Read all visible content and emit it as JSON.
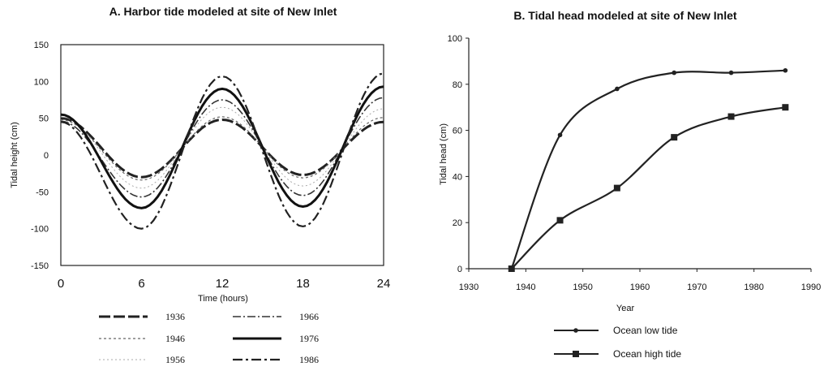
{
  "chart_data": [
    {
      "type": "line",
      "title": "A. Harbor tide modeled at site of New Inlet",
      "xlabel": "Time (hours)",
      "ylabel": "Tidal height (cm)",
      "xlim": [
        0,
        24
      ],
      "ylim": [
        -150,
        150
      ],
      "xticks": [
        "0",
        "6",
        "12",
        "18",
        "24"
      ],
      "yticks": [
        "150",
        "100",
        "50",
        "0",
        "-50",
        "-100",
        "-150"
      ],
      "grid": false,
      "legend_position": "bottom",
      "x": [
        0,
        6,
        12,
        18,
        24
      ],
      "series": [
        {
          "name": "1936",
          "values": [
            50,
            -30,
            48,
            -27,
            45
          ]
        },
        {
          "name": "1946",
          "values": [
            48,
            -34,
            52,
            -31,
            51
          ]
        },
        {
          "name": "1956",
          "values": [
            52,
            -45,
            65,
            -42,
            63
          ]
        },
        {
          "name": "1966",
          "values": [
            46,
            -57,
            75,
            -55,
            78
          ]
        },
        {
          "name": "1976",
          "values": [
            55,
            -72,
            90,
            -70,
            93
          ]
        },
        {
          "name": "1986",
          "values": [
            45,
            -100,
            107,
            -97,
            111
          ]
        }
      ]
    },
    {
      "type": "line",
      "title": "B. Tidal head modeled at site of New Inlet",
      "xlabel": "Year",
      "ylabel": "Tidal head (cm)",
      "xlim": [
        1930,
        1990
      ],
      "ylim": [
        0,
        100
      ],
      "xticks": [
        "1930",
        "1940",
        "1950",
        "1960",
        "1970",
        "1980",
        "1990"
      ],
      "yticks": [
        "100",
        "80",
        "60",
        "40",
        "20",
        "0"
      ],
      "grid": false,
      "legend_position": "bottom",
      "series": [
        {
          "name": "Ocean low tide",
          "x": [
            1937.5,
            1946,
            1956,
            1966,
            1976,
            1985.5
          ],
          "values": [
            0,
            58,
            78,
            85,
            85,
            86
          ]
        },
        {
          "name": "Ocean high tide",
          "x": [
            1937.5,
            1946,
            1956,
            1966,
            1976,
            1985.5
          ],
          "values": [
            0,
            21,
            35,
            57,
            66,
            70
          ]
        }
      ]
    }
  ]
}
